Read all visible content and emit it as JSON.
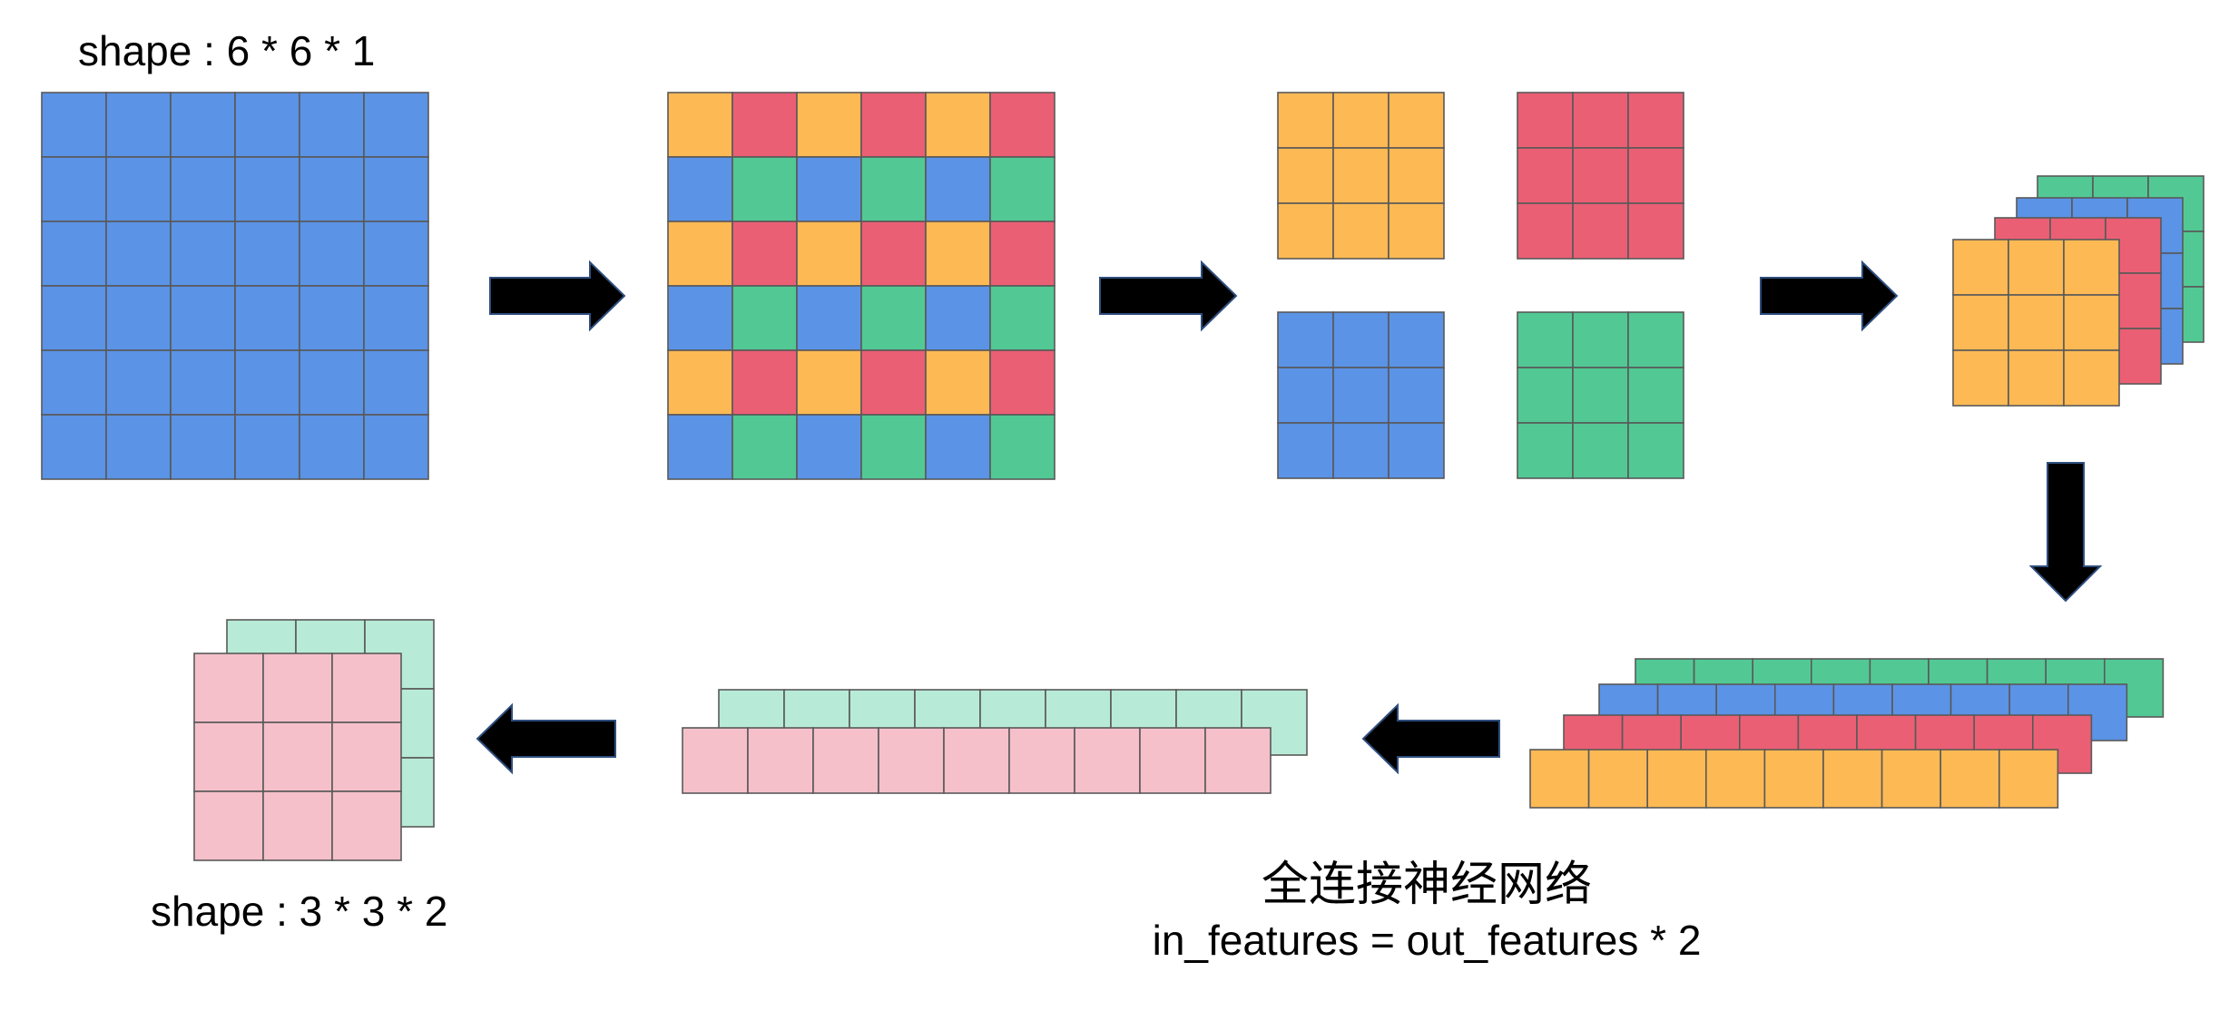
{
  "labels": {
    "input_shape": "shape : 6 * 6 * 1",
    "output_shape": "shape : 3 * 3 * 2",
    "fc_title": "全连接神经网络",
    "fc_formula": "in_features = out_features * 2"
  },
  "colors": {
    "blue": "#5b93e6",
    "red": "#eb5f74",
    "orange": "#fdb954",
    "green": "#52c994",
    "pink": "#f5c0ca",
    "mint": "#b8ebd7",
    "arrow_fill": "#000000",
    "arrow_outline": "#2f4f7f",
    "grid_line": "#595959"
  },
  "input_grid": {
    "rows": 6,
    "cols": 6,
    "color": "blue"
  },
  "colored_grid": {
    "rows": 6,
    "cols": 6,
    "row_patterns": [
      [
        "orange",
        "red"
      ],
      [
        "blue",
        "green"
      ]
    ]
  },
  "split_blocks": [
    {
      "name": "orange",
      "color": "orange",
      "rows": 3,
      "cols": 3
    },
    {
      "name": "red",
      "color": "red",
      "rows": 3,
      "cols": 3
    },
    {
      "name": "blue",
      "color": "blue",
      "rows": 3,
      "cols": 3
    },
    {
      "name": "green",
      "color": "green",
      "rows": 3,
      "cols": 3
    }
  ],
  "stacked_blocks": {
    "order_back_to_front": [
      "green",
      "blue",
      "red",
      "orange"
    ],
    "rows": 3,
    "cols": 3
  },
  "flattened_vectors": {
    "order_back_to_front": [
      "green",
      "blue",
      "red",
      "orange"
    ],
    "length": 9
  },
  "fc_outputs": {
    "order_back_to_front": [
      "mint",
      "pink"
    ],
    "length": 9
  },
  "output_blocks": {
    "order_back_to_front": [
      "mint",
      "pink"
    ],
    "rows": 3,
    "cols": 3
  }
}
